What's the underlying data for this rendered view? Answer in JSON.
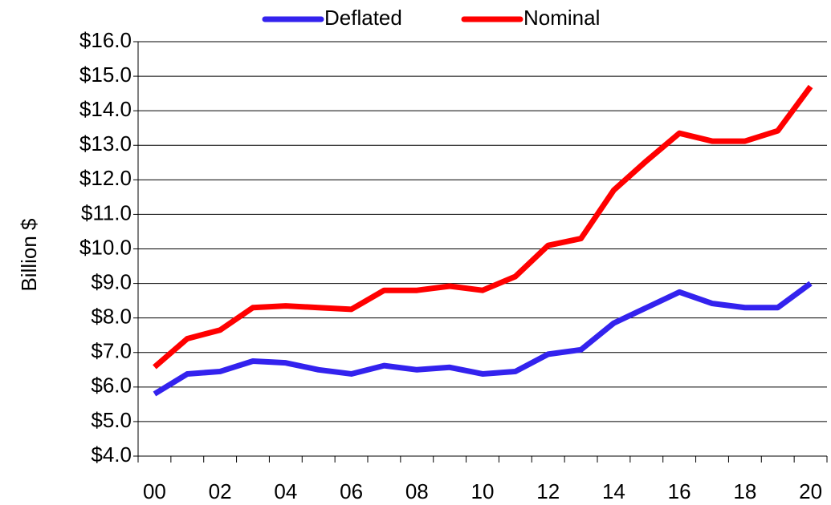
{
  "chart_data": {
    "type": "line",
    "y_label": "Billion $",
    "categories": [
      "00",
      null,
      "02",
      null,
      "04",
      null,
      "06",
      null,
      "08",
      null,
      "10",
      null,
      "12",
      null,
      "14",
      null,
      "16",
      null,
      "18",
      null,
      "20"
    ],
    "series": [
      {
        "name": "Deflated",
        "color": "#3322ee",
        "values": [
          5.8,
          6.38,
          6.45,
          6.75,
          6.7,
          6.5,
          6.38,
          6.62,
          6.5,
          6.57,
          6.38,
          6.45,
          6.95,
          7.08,
          7.85,
          8.3,
          8.75,
          8.42,
          8.3,
          8.3,
          9.0
        ]
      },
      {
        "name": "Nominal",
        "color": "#ff0000",
        "values": [
          6.58,
          7.4,
          7.65,
          8.3,
          8.35,
          8.3,
          8.25,
          8.8,
          8.8,
          8.92,
          8.8,
          9.2,
          10.1,
          10.3,
          11.7,
          12.55,
          13.35,
          13.12,
          13.12,
          13.42,
          14.7
        ]
      }
    ],
    "ylim": [
      4,
      16
    ],
    "yticks": [
      {
        "value": 4,
        "label": "$4.0"
      },
      {
        "value": 5,
        "label": "$5.0"
      },
      {
        "value": 6,
        "label": "$6.0"
      },
      {
        "value": 7,
        "label": "$7.0"
      },
      {
        "value": 8,
        "label": "$8.0"
      },
      {
        "value": 9,
        "label": "$9.0"
      },
      {
        "value": 10,
        "label": "$10.0"
      },
      {
        "value": 11,
        "label": "$11.0"
      },
      {
        "value": 12,
        "label": "$12.0"
      },
      {
        "value": 13,
        "label": "$13.0"
      },
      {
        "value": 14,
        "label": "$14.0"
      },
      {
        "value": 15,
        "label": "$15.0"
      },
      {
        "value": 16,
        "label": "$16.0"
      }
    ],
    "grid": true,
    "legend": "top"
  }
}
